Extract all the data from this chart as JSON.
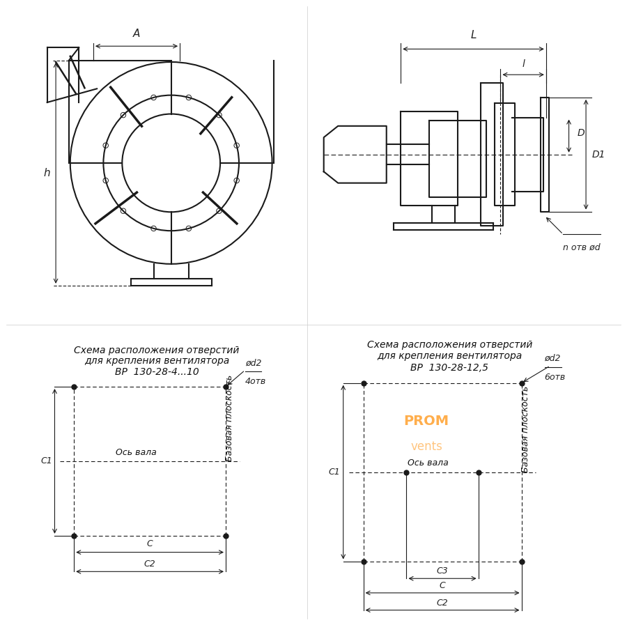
{
  "bg_color": "#ffffff",
  "line_color": "#1a1a1a",
  "dim_color": "#222222",
  "title_color": "#111111",
  "font_family": "DejaVu Sans",
  "italic_font": "DejaVu Sans",
  "title1": "Схема расположения отверстий\nдля крепления вентилятора\nВР  130-28-4...10",
  "title2": "Схема расположения отверстий\nдля крепления вентилятора\nВР  130-28-12,5",
  "label_A": "A",
  "label_L_big": "L",
  "label_L_small": "l",
  "label_h": "h",
  "label_D": "D",
  "label_D1": "D1",
  "label_n_otv_d": "n отв ød",
  "label_phi_d2_4": "ød2\n4отв",
  "label_phi_d2_6": "ød2\n6отв",
  "label_os_vala": "Ось вала",
  "label_baz_pl": "Базовая плоскость",
  "label_C1": "C1",
  "label_C": "C",
  "label_C2": "C2",
  "label_C3": "C3"
}
